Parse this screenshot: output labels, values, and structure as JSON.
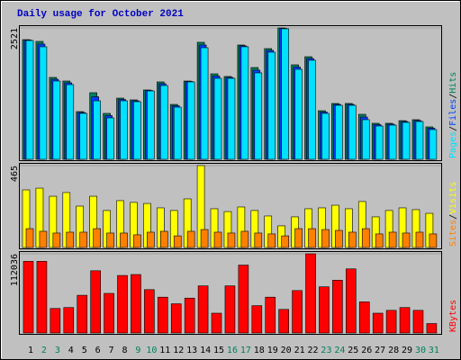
{
  "title": "Daily usage for October 2021",
  "chart_data": [
    {
      "type": "bar",
      "ylim": [
        0,
        2521
      ],
      "yticks": [
        2521
      ],
      "legend_separator": "/",
      "series": [
        {
          "name": "Hits",
          "color": "#00805c",
          "values": [
            2296,
            2262,
            1571,
            1502,
            915,
            1278,
            881,
            1174,
            1140,
            1330,
            1485,
            1053,
            1502,
            2245,
            1640,
            1589,
            2193,
            1761,
            2124,
            2521,
            1813,
            1968,
            932,
            1071,
            1071,
            863,
            691,
            691,
            742,
            760,
            622
          ]
        },
        {
          "name": "Files",
          "color": "#0040ff",
          "values": [
            2288,
            2210,
            1536,
            1468,
            898,
            1200,
            838,
            1148,
            1122,
            1321,
            1450,
            1027,
            1493,
            2193,
            1597,
            1571,
            2176,
            1710,
            2090,
            2512,
            1770,
            1934,
            906,
            1053,
            1053,
            811,
            665,
            673,
            725,
            742,
            596
          ]
        },
        {
          "name": "Pages",
          "color": "#00e0ff",
          "values": [
            2279,
            2159,
            1502,
            1433,
            881,
            1122,
            794,
            1122,
            1105,
            1312,
            1416,
            1001,
            1485,
            2141,
            1554,
            1554,
            2159,
            1658,
            2055,
            2504,
            1727,
            1900,
            881,
            1036,
            1036,
            760,
            639,
            656,
            708,
            725,
            570
          ]
        }
      ]
    },
    {
      "type": "bar",
      "ylim": [
        0,
        465
      ],
      "yticks": [
        465
      ],
      "legend_separator": "/",
      "series": [
        {
          "name": "Visits",
          "color": "#ffff00",
          "values": [
            327,
            337,
            291,
            312,
            235,
            291,
            210,
            266,
            256,
            250,
            225,
            210,
            276,
            465,
            220,
            204,
            230,
            210,
            179,
            123,
            174,
            220,
            225,
            240,
            220,
            261,
            174,
            210,
            225,
            215,
            194
          ]
        },
        {
          "name": "Sites",
          "color": "#ff8000",
          "values": [
            107,
            92,
            82,
            87,
            87,
            107,
            82,
            82,
            72,
            87,
            92,
            66,
            92,
            102,
            87,
            82,
            92,
            82,
            77,
            66,
            107,
            107,
            102,
            97,
            87,
            107,
            77,
            87,
            82,
            87,
            77
          ]
        }
      ]
    },
    {
      "type": "bar",
      "ylim": [
        0,
        112036
      ],
      "yticks": [
        112036
      ],
      "series": [
        {
          "name": "KBytes",
          "color": "#ff0000",
          "values": [
            101369,
            101369,
            34679,
            36013,
            53352,
            88031,
            56020,
            81362,
            82696,
            61355,
            50684,
            41348,
            49351,
            66690,
            28010,
            66690,
            96034,
            38680,
            50684,
            33345,
            60021,
            112036,
            65356,
            74693,
            90698,
            44015,
            28010,
            32011,
            36013,
            32011,
            13338
          ]
        }
      ],
      "categories": [
        "1",
        "2",
        "3",
        "4",
        "5",
        "6",
        "7",
        "8",
        "9",
        "10",
        "11",
        "12",
        "13",
        "14",
        "15",
        "16",
        "17",
        "18",
        "19",
        "20",
        "21",
        "22",
        "23",
        "24",
        "25",
        "26",
        "27",
        "28",
        "29",
        "30",
        "31"
      ],
      "category_colors": [
        "#000000",
        "#00805c",
        "#00805c",
        "#000000",
        "#000000",
        "#000000",
        "#000000",
        "#000000",
        "#00805c",
        "#00805c",
        "#000000",
        "#000000",
        "#000000",
        "#000000",
        "#000000",
        "#00805c",
        "#00805c",
        "#000000",
        "#000000",
        "#000000",
        "#000000",
        "#000000",
        "#00805c",
        "#00805c",
        "#000000",
        "#000000",
        "#000000",
        "#000000",
        "#000000",
        "#00805c",
        "#00805c"
      ]
    }
  ]
}
